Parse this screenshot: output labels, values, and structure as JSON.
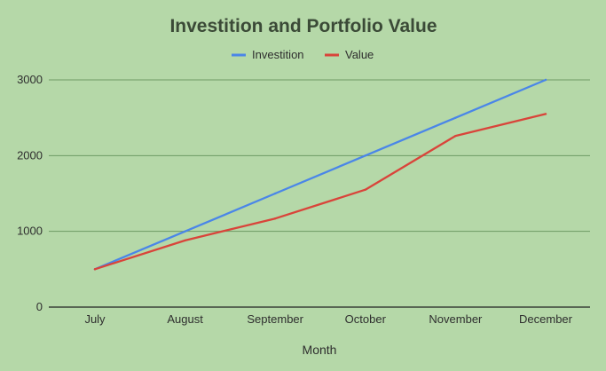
{
  "chart_data": {
    "type": "line",
    "title": "Investition and Portfolio Value",
    "xlabel": "Month",
    "ylabel": "",
    "categories": [
      "July",
      "August",
      "September",
      "October",
      "November",
      "December"
    ],
    "series": [
      {
        "name": "Investition",
        "values": [
          500,
          1000,
          1500,
          2000,
          2500,
          3000
        ],
        "color": "#4a86e8"
      },
      {
        "name": "Value",
        "values": [
          500,
          880,
          1170,
          1550,
          2260,
          2550
        ],
        "color": "#d9443a"
      }
    ],
    "ylim": [
      0,
      3000
    ],
    "yticks": [
      "0",
      "1000",
      "2000",
      "3000"
    ],
    "grid": true,
    "legend": "top-center",
    "background_color": "#b5d8a8",
    "title_color": "#3b4a37",
    "text_color": "#2e2e2e",
    "gridline_color": "#6e9a63",
    "axis_color": "#222222"
  }
}
